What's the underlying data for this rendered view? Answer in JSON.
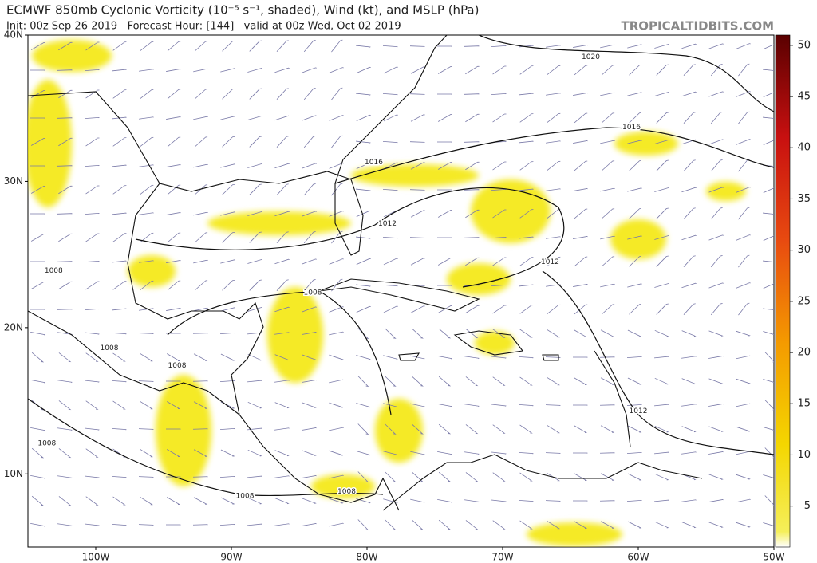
{
  "header": {
    "title": "ECMWF 850mb Cyclonic Vorticity (10⁻⁵ s⁻¹, shaded), Wind (kt), and MSLP (hPa)",
    "subtitle": "Init: 00z Sep 26 2019   Forecast Hour: [144]   valid at 00z Wed, Oct 02 2019",
    "brand": "TROPICALTIDBITS.COM"
  },
  "map": {
    "lonlim": [
      -105,
      -50
    ],
    "latlim": [
      5,
      40
    ],
    "lat_ticks": [
      {
        "value": 40,
        "label": "40N"
      },
      {
        "value": 30,
        "label": "30N"
      },
      {
        "value": 20,
        "label": "20N"
      },
      {
        "value": 10,
        "label": "10N"
      }
    ],
    "lon_ticks": [
      {
        "value": -100,
        "label": "100W"
      },
      {
        "value": -90,
        "label": "90W"
      },
      {
        "value": -80,
        "label": "80W"
      },
      {
        "value": -70,
        "label": "70W"
      },
      {
        "value": -60,
        "label": "60W"
      },
      {
        "value": -50,
        "label": "50W"
      }
    ],
    "isobar_labels": [
      {
        "label": 1020,
        "lon": -63.5,
        "lat": 38.5
      },
      {
        "label": 1016,
        "lon": -60.5,
        "lat": 33.7
      },
      {
        "label": 1016,
        "lon": -79.5,
        "lat": 31.3
      },
      {
        "label": 1012,
        "lon": -78.5,
        "lat": 27.1
      },
      {
        "label": 1012,
        "lon": -66.5,
        "lat": 24.5
      },
      {
        "label": 1008,
        "lon": -103.1,
        "lat": 23.9
      },
      {
        "label": 1008,
        "lon": -84,
        "lat": 22.4
      },
      {
        "label": 1008,
        "lon": -99,
        "lat": 18.6
      },
      {
        "label": 1008,
        "lon": -94,
        "lat": 17.4
      },
      {
        "label": 1012,
        "lon": -60,
        "lat": 14.3
      },
      {
        "label": 1008,
        "lon": -103.6,
        "lat": 12.1
      },
      {
        "label": 1008,
        "lon": -89,
        "lat": 8.5
      },
      {
        "label": 1008,
        "lon": -81.5,
        "lat": 8.8
      }
    ]
  },
  "colorbar": {
    "range": [
      1,
      51
    ],
    "ticks": [
      5,
      10,
      15,
      20,
      25,
      30,
      35,
      40,
      45,
      50
    ]
  }
}
